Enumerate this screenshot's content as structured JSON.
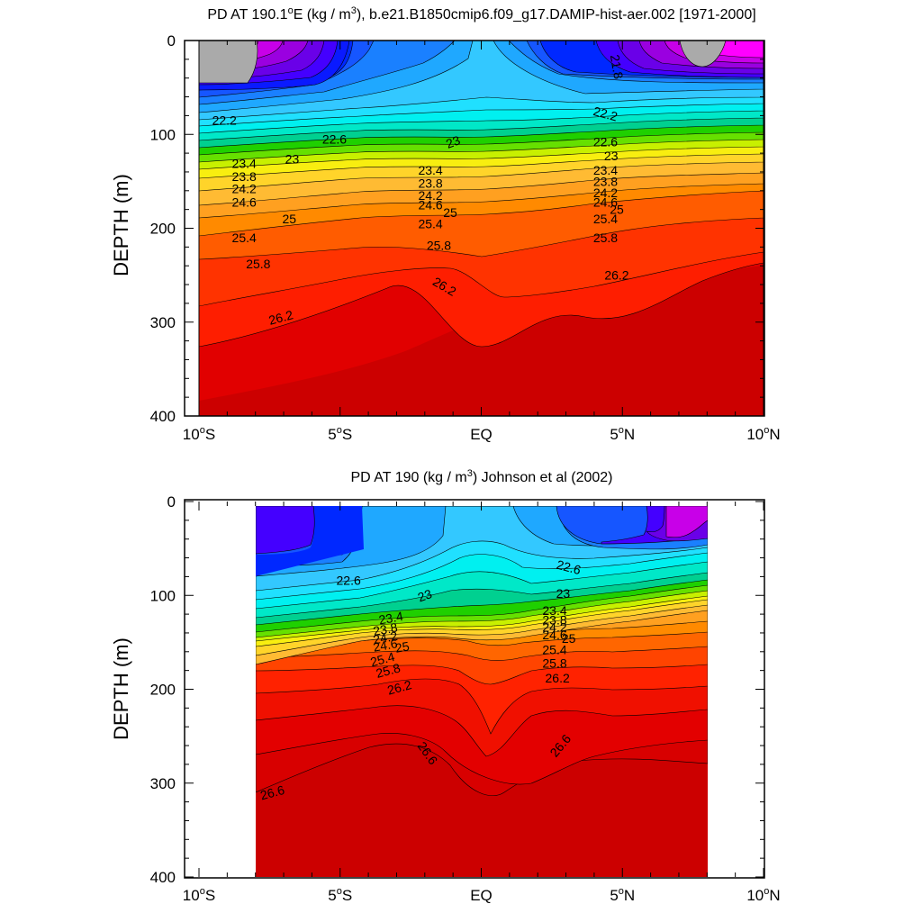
{
  "chart_data": [
    {
      "type": "contour",
      "title": "PD AT 190.1°E (kg / m³), b.e21.B1850cmip6.f09_g17.DAMIP-hist-aer.002 [1971-2000]",
      "title_parts": [
        "PD AT 190.1",
        "E (kg / m",
        "), b.e21.B1850cmip6.f09_g17.DAMIP-hist-aer.002 [1971-2000]"
      ],
      "ylabel": "DEPTH (m)",
      "xlim": [
        -10,
        10
      ],
      "ylim": [
        400,
        0
      ],
      "x_ticks": [
        -10,
        -5,
        0,
        5,
        10
      ],
      "y_ticks": [
        0,
        100,
        200,
        300,
        400
      ],
      "data_xrange": [
        -10,
        10
      ],
      "contour_labels": [
        {
          "value": "21.8",
          "lat": 4.8,
          "depth": 28,
          "rot": 80
        },
        {
          "value": "22.2",
          "lat": -9.1,
          "depth": 85,
          "rot": 0
        },
        {
          "value": "22.6",
          "lat": -5.2,
          "depth": 105,
          "rot": 0
        },
        {
          "value": "23",
          "lat": -1.0,
          "depth": 108,
          "rot": -20
        },
        {
          "value": "23",
          "lat": -6.7,
          "depth": 126,
          "rot": 0
        },
        {
          "value": "23.4",
          "lat": -8.4,
          "depth": 131,
          "rot": 0
        },
        {
          "value": "23.8",
          "lat": -8.4,
          "depth": 145,
          "rot": 0
        },
        {
          "value": "24.2",
          "lat": -8.4,
          "depth": 158,
          "rot": 0
        },
        {
          "value": "24.6",
          "lat": -8.4,
          "depth": 172,
          "rot": 0
        },
        {
          "value": "25",
          "lat": -6.8,
          "depth": 190,
          "rot": 0
        },
        {
          "value": "25.4",
          "lat": -8.4,
          "depth": 210,
          "rot": 0
        },
        {
          "value": "25.8",
          "lat": -7.9,
          "depth": 238,
          "rot": 0
        },
        {
          "value": "26.2",
          "lat": -7.1,
          "depth": 295,
          "rot": -15
        },
        {
          "value": "23.4",
          "lat": -1.8,
          "depth": 138,
          "rot": 0
        },
        {
          "value": "23.8",
          "lat": -1.8,
          "depth": 152,
          "rot": 0
        },
        {
          "value": "24.2",
          "lat": -1.8,
          "depth": 165,
          "rot": 0
        },
        {
          "value": "24.6",
          "lat": -1.8,
          "depth": 175,
          "rot": 0
        },
        {
          "value": "25",
          "lat": -1.1,
          "depth": 183,
          "rot": 0
        },
        {
          "value": "25.4",
          "lat": -1.8,
          "depth": 195,
          "rot": 0
        },
        {
          "value": "25.8",
          "lat": -1.5,
          "depth": 218,
          "rot": 0
        },
        {
          "value": "26.2",
          "lat": -1.3,
          "depth": 262,
          "rot": 30
        },
        {
          "value": "22.2",
          "lat": 4.4,
          "depth": 78,
          "rot": 15
        },
        {
          "value": "22.6",
          "lat": 4.4,
          "depth": 108,
          "rot": 0
        },
        {
          "value": "23",
          "lat": 4.6,
          "depth": 123,
          "rot": 0
        },
        {
          "value": "23.4",
          "lat": 4.4,
          "depth": 138,
          "rot": 0
        },
        {
          "value": "23.8",
          "lat": 4.4,
          "depth": 150,
          "rot": 0
        },
        {
          "value": "24.2",
          "lat": 4.4,
          "depth": 162,
          "rot": 0
        },
        {
          "value": "24.6",
          "lat": 4.4,
          "depth": 172,
          "rot": 0
        },
        {
          "value": "25",
          "lat": 4.8,
          "depth": 180,
          "rot": 0
        },
        {
          "value": "25.4",
          "lat": 4.4,
          "depth": 190,
          "rot": 0
        },
        {
          "value": "25.8",
          "lat": 4.4,
          "depth": 210,
          "rot": 0
        },
        {
          "value": "26.2",
          "lat": 4.8,
          "depth": 250,
          "rot": 0
        }
      ]
    },
    {
      "type": "contour",
      "title": "PD AT 190 (kg / m³) Johnson et al (2002)",
      "title_parts": [
        "PD AT 190 (kg / m",
        ") Johnson et al (2002)"
      ],
      "ylabel": "DEPTH (m)",
      "xlim": [
        -10,
        10
      ],
      "ylim": [
        400,
        0
      ],
      "x_ticks": [
        -10,
        -5,
        0,
        5,
        10
      ],
      "y_ticks": [
        0,
        100,
        200,
        300,
        400
      ],
      "data_xrange": [
        -8,
        8
      ],
      "contour_labels": [
        {
          "value": "22.6",
          "lat": -4.7,
          "depth": 84,
          "rot": 0
        },
        {
          "value": "23",
          "lat": -2.0,
          "depth": 100,
          "rot": -20
        },
        {
          "value": "23.4",
          "lat": -3.2,
          "depth": 124,
          "rot": -10
        },
        {
          "value": "23.8",
          "lat": -3.4,
          "depth": 136,
          "rot": -10
        },
        {
          "value": "24.2",
          "lat": -3.4,
          "depth": 145,
          "rot": -10
        },
        {
          "value": "24.6",
          "lat": -3.4,
          "depth": 153,
          "rot": -10
        },
        {
          "value": "25",
          "lat": -2.8,
          "depth": 155,
          "rot": -10
        },
        {
          "value": "25.4",
          "lat": -3.5,
          "depth": 168,
          "rot": -15
        },
        {
          "value": "25.8",
          "lat": -3.3,
          "depth": 180,
          "rot": -15
        },
        {
          "value": "26.2",
          "lat": -2.9,
          "depth": 198,
          "rot": -15
        },
        {
          "value": "22.6",
          "lat": 3.1,
          "depth": 70,
          "rot": 15
        },
        {
          "value": "23",
          "lat": 2.9,
          "depth": 98,
          "rot": 0
        },
        {
          "value": "23.4",
          "lat": 2.6,
          "depth": 116,
          "rot": 0
        },
        {
          "value": "23.8",
          "lat": 2.6,
          "depth": 126,
          "rot": 0
        },
        {
          "value": "24.2",
          "lat": 2.6,
          "depth": 134,
          "rot": 0
        },
        {
          "value": "24.6",
          "lat": 2.6,
          "depth": 142,
          "rot": 0
        },
        {
          "value": "25",
          "lat": 3.1,
          "depth": 146,
          "rot": 0
        },
        {
          "value": "25.4",
          "lat": 2.6,
          "depth": 158,
          "rot": 0
        },
        {
          "value": "25.8",
          "lat": 2.6,
          "depth": 172,
          "rot": 0
        },
        {
          "value": "26.2",
          "lat": 2.7,
          "depth": 188,
          "rot": 0
        },
        {
          "value": "26.6",
          "lat": -1.9,
          "depth": 268,
          "rot": 55
        },
        {
          "value": "26.6",
          "lat": 2.8,
          "depth": 260,
          "rot": -50
        },
        {
          "value": "26.6",
          "lat": -7.4,
          "depth": 310,
          "rot": -15
        }
      ]
    }
  ]
}
